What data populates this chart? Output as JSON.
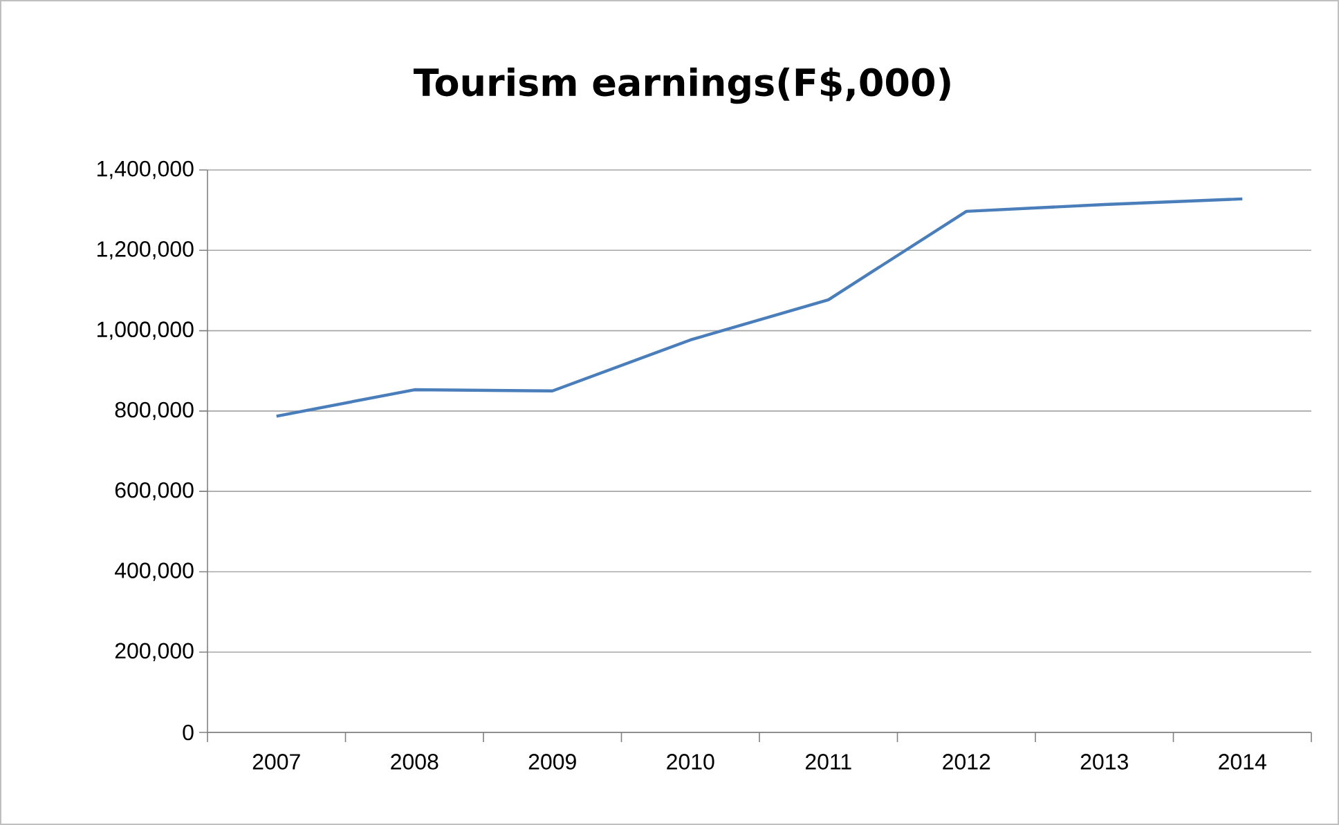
{
  "chart_data": {
    "type": "line",
    "title": "Tourism earnings(F$,000)",
    "categories": [
      "2007",
      "2008",
      "2009",
      "2010",
      "2011",
      "2012",
      "2013",
      "2014"
    ],
    "series": [
      {
        "color": "#4a7ebb",
        "values": [
          787000,
          853000,
          850000,
          977000,
          1077000,
          1297000,
          1314000,
          1328000
        ]
      }
    ],
    "ylim": [
      0,
      1400000
    ],
    "yticks": [
      {
        "value": 0,
        "label": "0"
      },
      {
        "value": 200000,
        "label": "200,000"
      },
      {
        "value": 400000,
        "label": "400,000"
      },
      {
        "value": 600000,
        "label": "600,000"
      },
      {
        "value": 800000,
        "label": "800,000"
      },
      {
        "value": 1000000,
        "label": "1,000,000"
      },
      {
        "value": 1200000,
        "label": "1,200,000"
      },
      {
        "value": 1400000,
        "label": "1,400,000"
      }
    ],
    "grid": "y",
    "marker": "none",
    "line_style": "solid"
  }
}
